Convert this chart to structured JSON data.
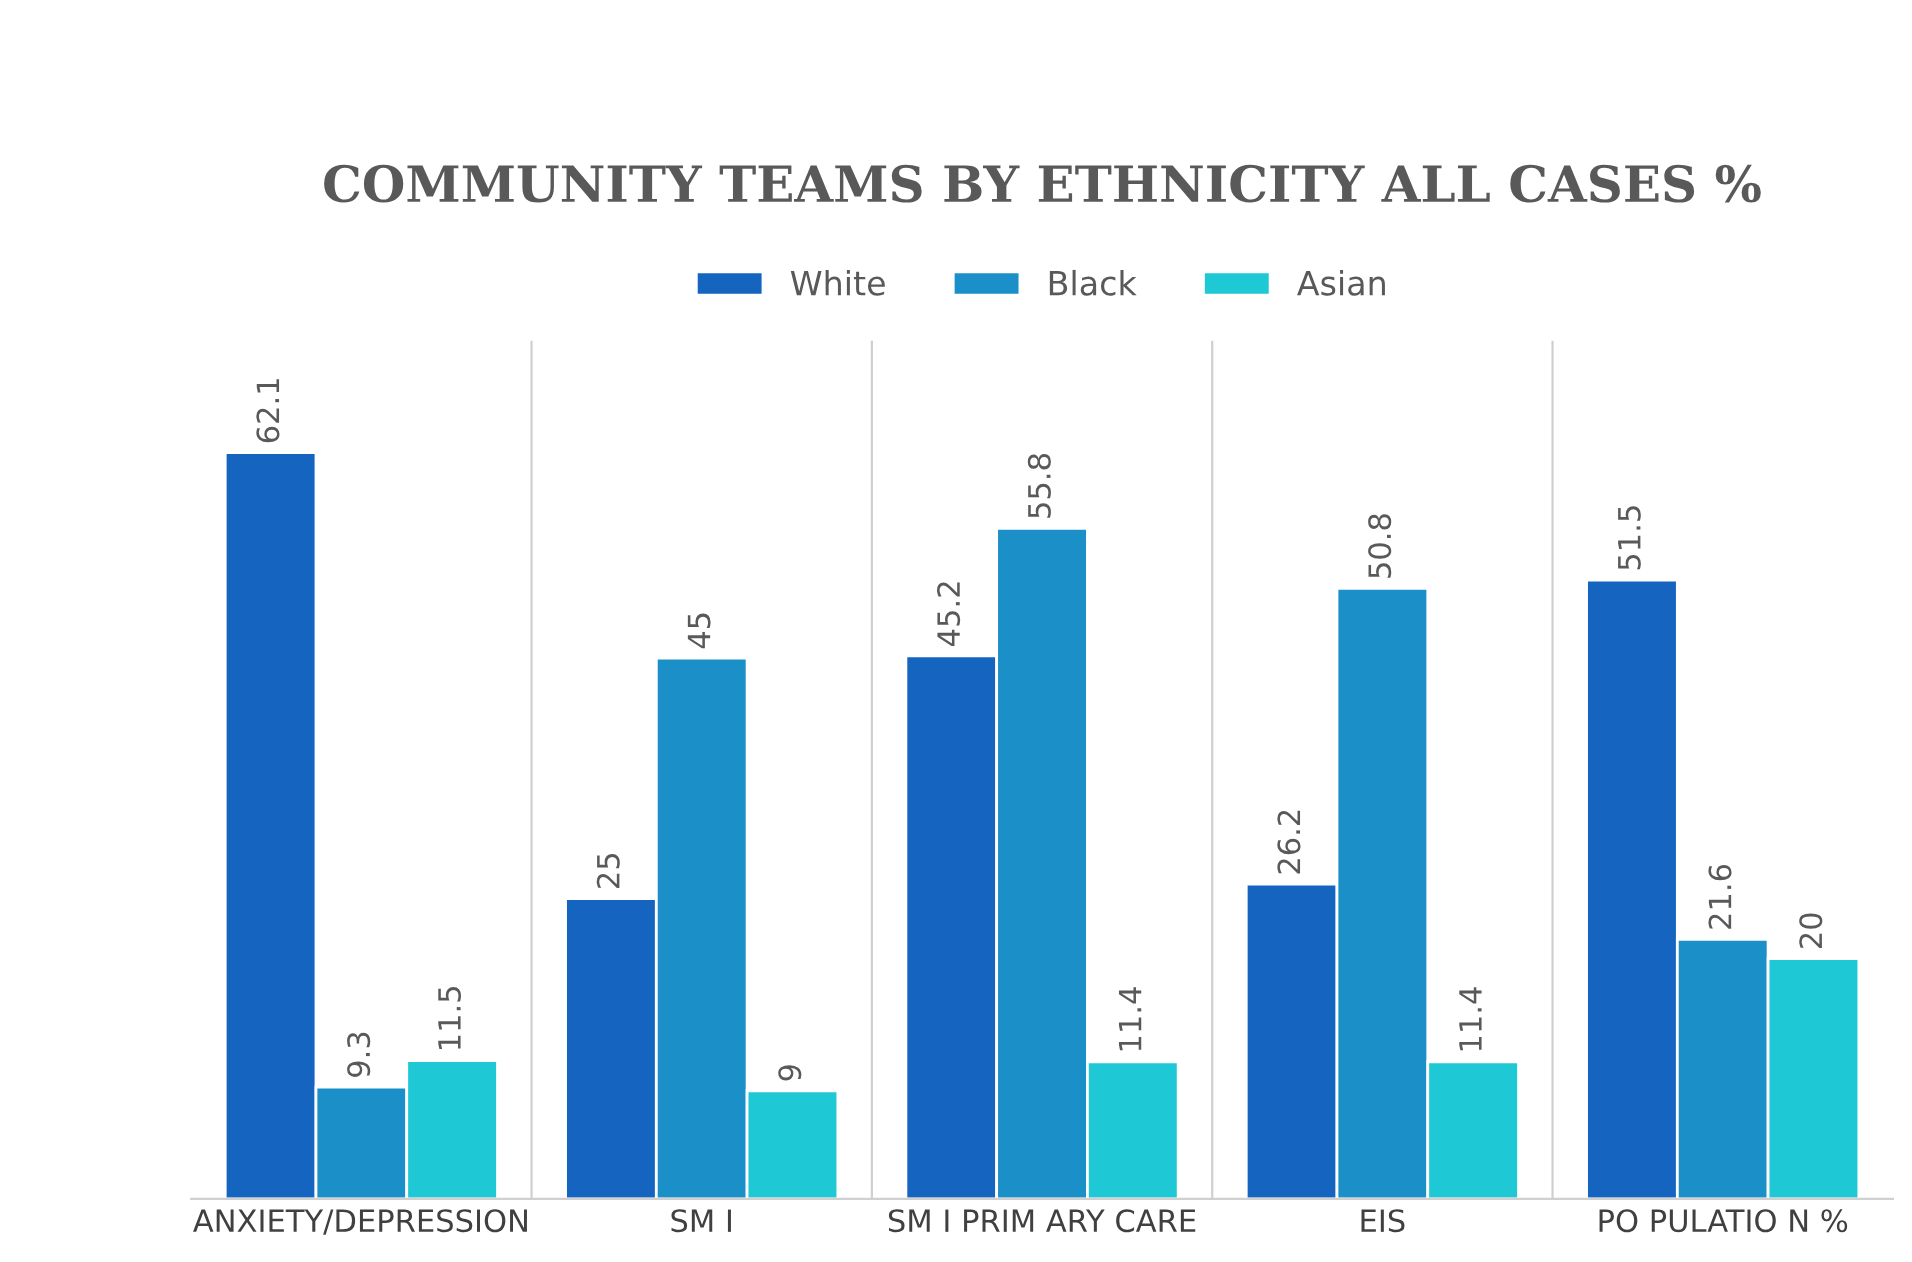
{
  "chart_data": {
    "type": "bar",
    "title": "COMMUNITY TEAMS BY ETHNICITY ALL CASES %",
    "categories": [
      "ANXIETY/DEPRESSION",
      "SM I",
      "SM I PRIM ARY CARE",
      "EIS",
      "PO PULATIO N %"
    ],
    "series": [
      {
        "name": "White",
        "color": "#1565c0",
        "values": [
          62.1,
          25,
          45.2,
          26.2,
          51.5
        ]
      },
      {
        "name": "Black",
        "color": "#1a8fc8",
        "values": [
          9.3,
          45,
          55.8,
          50.8,
          21.6
        ]
      },
      {
        "name": "Asian",
        "color": "#1ec8d4",
        "values": [
          11.5,
          9,
          11.4,
          11.4,
          20
        ]
      }
    ],
    "data_labels": true,
    "grid": "x",
    "legend": "top"
  }
}
